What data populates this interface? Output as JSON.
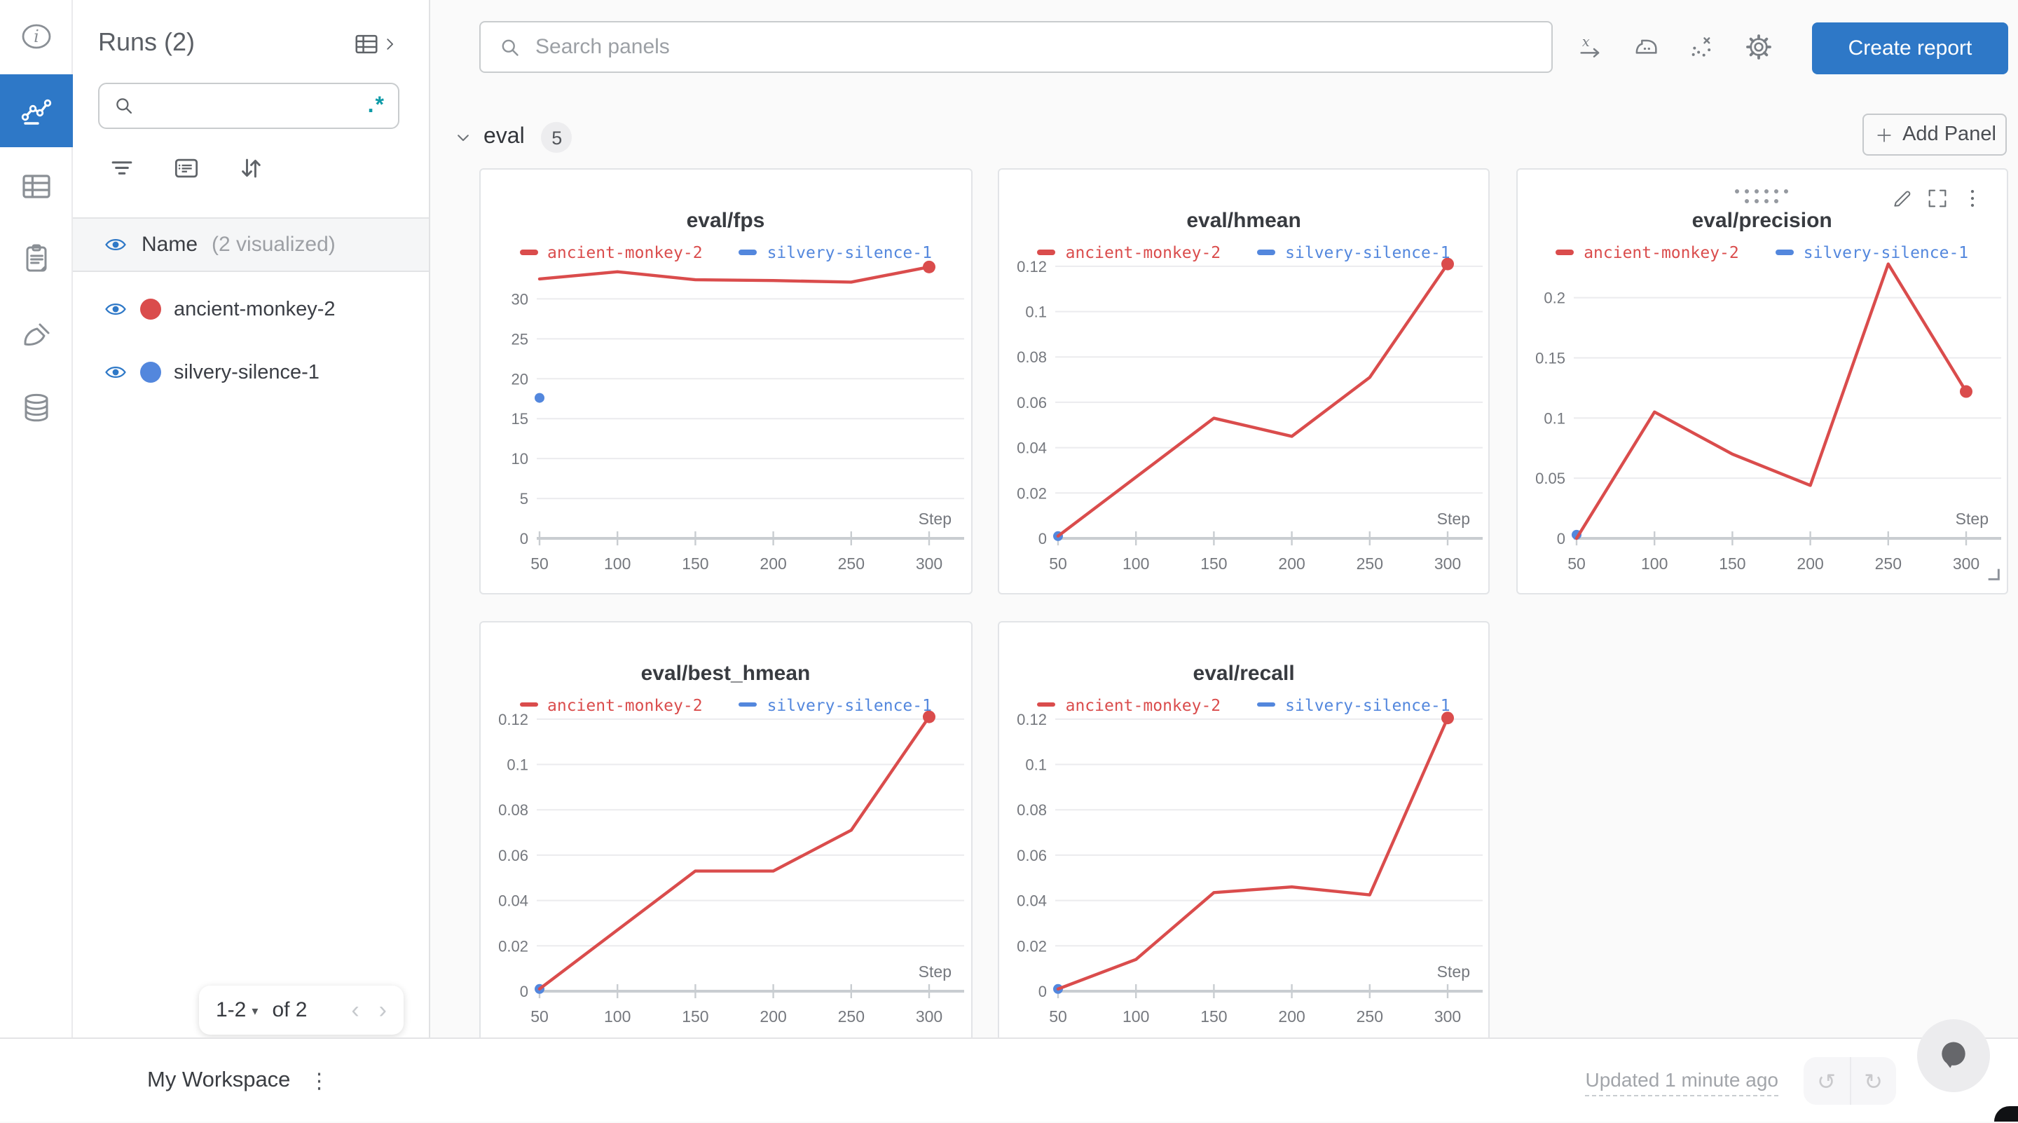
{
  "app": {
    "accent_blue": "#2e78c7",
    "background": "#fafafa"
  },
  "nav_rail": {
    "items": [
      {
        "id": "overview",
        "icon": "info",
        "active": false
      },
      {
        "id": "workspace",
        "icon": "line-chart",
        "active": true
      },
      {
        "id": "runs-table",
        "icon": "table",
        "active": false
      },
      {
        "id": "logs",
        "icon": "clipboard",
        "active": false
      },
      {
        "id": "sweeps",
        "icon": "brush",
        "active": false
      },
      {
        "id": "artifacts",
        "icon": "database",
        "active": false
      }
    ]
  },
  "sidebar": {
    "title": "Runs (2)",
    "search_placeholder": "",
    "regex_toggle": ".*",
    "toolbar_icons": [
      "filter",
      "group",
      "sort"
    ],
    "name_header": {
      "label": "Name",
      "annotation": "(2 visualized)"
    },
    "runs": [
      {
        "label": "ancient-monkey-2",
        "color": "#da4c4c",
        "visible": true
      },
      {
        "label": "silvery-silence-1",
        "color": "#5387dd",
        "visible": true
      }
    ],
    "pagination": {
      "range": "1-2",
      "of_label": "of 2"
    }
  },
  "topbar": {
    "search_placeholder": "Search panels",
    "icons": [
      "x-axis",
      "smoothing",
      "outliers",
      "settings"
    ],
    "create_report_label": "Create report"
  },
  "section": {
    "label": "eval",
    "count": "5",
    "add_panel_label": "Add Panel"
  },
  "chart_data": [
    {
      "type": "line",
      "title": "eval/fps",
      "xlabel": "Step",
      "x": [
        50,
        100,
        150,
        200,
        250,
        300
      ],
      "xticks": [
        50,
        100,
        150,
        200,
        250,
        300
      ],
      "yticks": [
        0,
        5,
        10,
        15,
        20,
        25,
        30
      ],
      "ymax": 34.6,
      "hovered": false,
      "series": [
        {
          "name": "ancient-monkey-2",
          "color": "#da4c4c",
          "marker": "line",
          "steps": [
            50,
            100,
            150,
            200,
            250,
            300
          ],
          "values": [
            32.5,
            33.4,
            32.4,
            32.3,
            32.1,
            34.0
          ]
        },
        {
          "name": "silvery-silence-1",
          "color": "#5387dd",
          "marker": "point",
          "steps": [
            50
          ],
          "values": [
            17.6
          ]
        }
      ]
    },
    {
      "type": "line",
      "title": "eval/hmean",
      "xlabel": "Step",
      "x": [
        50,
        100,
        150,
        200,
        250,
        300
      ],
      "xticks": [
        50,
        100,
        150,
        200,
        250,
        300
      ],
      "yticks": [
        0,
        0.02,
        0.04,
        0.06,
        0.08,
        0.1,
        0.12
      ],
      "ymax": 0.1218,
      "hovered": false,
      "series": [
        {
          "name": "ancient-monkey-2",
          "color": "#da4c4c",
          "marker": "line",
          "steps": [
            50,
            100,
            150,
            200,
            250,
            300
          ],
          "values": [
            0.001,
            0.027,
            0.053,
            0.045,
            0.071,
            0.121
          ]
        },
        {
          "name": "silvery-silence-1",
          "color": "#5387dd",
          "marker": "point",
          "steps": [
            50
          ],
          "values": [
            0.001
          ]
        }
      ]
    },
    {
      "type": "line",
      "title": "eval/precision",
      "xlabel": "Step",
      "x": [
        50,
        100,
        150,
        200,
        250,
        300
      ],
      "xticks": [
        50,
        100,
        150,
        200,
        250,
        300
      ],
      "yticks": [
        0,
        0.05,
        0.1,
        0.15,
        0.2
      ],
      "ymax": 0.2295,
      "hovered": true,
      "series": [
        {
          "name": "ancient-monkey-2",
          "color": "#da4c4c",
          "marker": "line",
          "steps": [
            50,
            100,
            150,
            200,
            250,
            300
          ],
          "values": [
            0.0,
            0.105,
            0.07,
            0.044,
            0.228,
            0.122
          ]
        },
        {
          "name": "silvery-silence-1",
          "color": "#5387dd",
          "marker": "point",
          "steps": [
            50
          ],
          "values": [
            0.003
          ]
        }
      ]
    },
    {
      "type": "line",
      "title": "eval/best_hmean",
      "xlabel": "Step",
      "x": [
        50,
        100,
        150,
        200,
        250,
        300
      ],
      "xticks": [
        50,
        100,
        150,
        200,
        250,
        300
      ],
      "yticks": [
        0,
        0.02,
        0.04,
        0.06,
        0.08,
        0.1,
        0.12
      ],
      "ymax": 0.1218,
      "hovered": false,
      "series": [
        {
          "name": "ancient-monkey-2",
          "color": "#da4c4c",
          "marker": "line",
          "steps": [
            50,
            100,
            150,
            200,
            250,
            300
          ],
          "values": [
            0.001,
            0.027,
            0.053,
            0.053,
            0.071,
            0.121
          ]
        },
        {
          "name": "silvery-silence-1",
          "color": "#5387dd",
          "marker": "point",
          "steps": [
            50
          ],
          "values": [
            0.001
          ]
        }
      ]
    },
    {
      "type": "line",
      "title": "eval/recall",
      "xlabel": "Step",
      "x": [
        50,
        100,
        150,
        200,
        250,
        300
      ],
      "xticks": [
        50,
        100,
        150,
        200,
        250,
        300
      ],
      "yticks": [
        0,
        0.02,
        0.04,
        0.06,
        0.08,
        0.1,
        0.12
      ],
      "ymax": 0.1218,
      "hovered": false,
      "series": [
        {
          "name": "ancient-monkey-2",
          "color": "#da4c4c",
          "marker": "line",
          "steps": [
            50,
            100,
            150,
            200,
            250,
            300
          ],
          "values": [
            0.001,
            0.014,
            0.0435,
            0.046,
            0.0425,
            0.1205
          ]
        },
        {
          "name": "silvery-silence-1",
          "color": "#5387dd",
          "marker": "point",
          "steps": [
            50
          ],
          "values": [
            0.001
          ]
        }
      ]
    }
  ],
  "footer": {
    "workspace_label": "My Workspace",
    "updated_label": "Updated 1 minute ago",
    "history_icons": [
      "undo",
      "redo"
    ],
    "chat_icon": "chat"
  }
}
